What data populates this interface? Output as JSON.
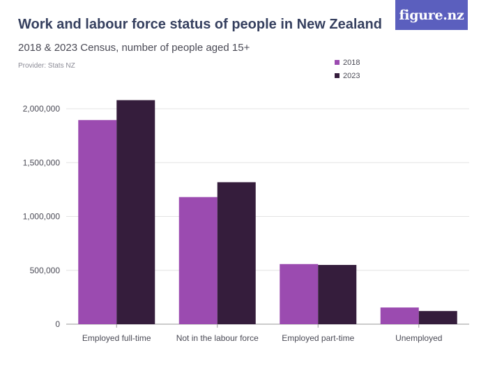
{
  "header": {
    "title": "Work and labour force status of people in New Zealand",
    "subtitle": "2018 & 2023 Census, number of people aged 15+",
    "provider": "Provider: Stats NZ"
  },
  "logo": {
    "text": "figure.nz",
    "color": "#5b5fbe"
  },
  "chart_data": {
    "type": "bar",
    "categories": [
      "Employed full-time",
      "Not in the labour force",
      "Employed part-time",
      "Unemployed"
    ],
    "series": [
      {
        "name": "2018",
        "color": "#9b4bb0",
        "values": [
          1895000,
          1180000,
          558000,
          155000
        ]
      },
      {
        "name": "2023",
        "color": "#351d3c",
        "values": [
          2080000,
          1318000,
          550000,
          122000
        ]
      }
    ],
    "yticks": [
      0,
      500000,
      1000000,
      1500000,
      2000000
    ],
    "ytick_labels": [
      "0",
      "500,000",
      "1,000,000",
      "1,500,000",
      "2,000,000"
    ],
    "ylim": [
      0,
      2000000
    ],
    "grid": true,
    "legend_position": "top-right"
  }
}
